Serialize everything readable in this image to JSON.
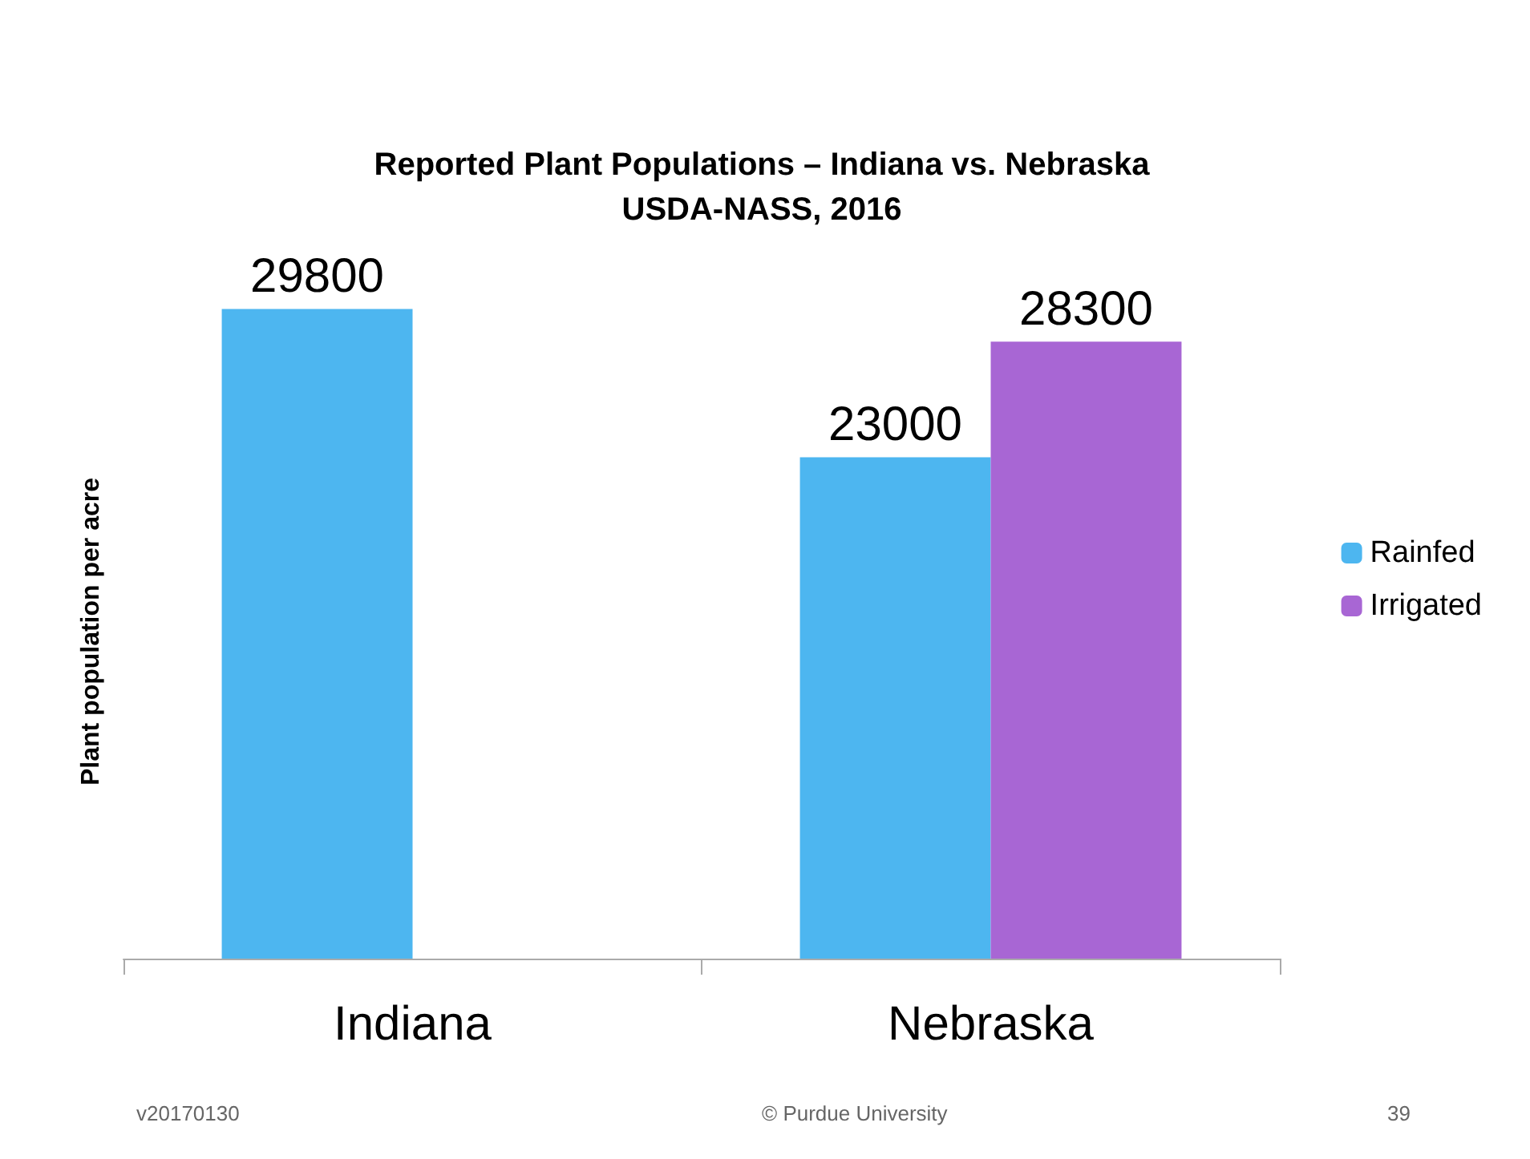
{
  "chart_data": {
    "type": "bar",
    "title": "Reported Plant Populations – Indiana vs. Nebraska",
    "subtitle": "USDA-NASS, 2016",
    "ylabel": "Plant population per acre",
    "categories": [
      "Indiana",
      "Nebraska"
    ],
    "series": [
      {
        "name": "Rainfed",
        "color": "#4db6f0",
        "values": [
          29800,
          23000
        ]
      },
      {
        "name": "Irrigated",
        "color": "#a866d4",
        "values": [
          null,
          28300
        ]
      }
    ],
    "data_labels": true,
    "grid": false,
    "legend": "right",
    "tick_labels": "x",
    "annotations": [
      "v20170130",
      "© Purdue University",
      "39"
    ]
  }
}
